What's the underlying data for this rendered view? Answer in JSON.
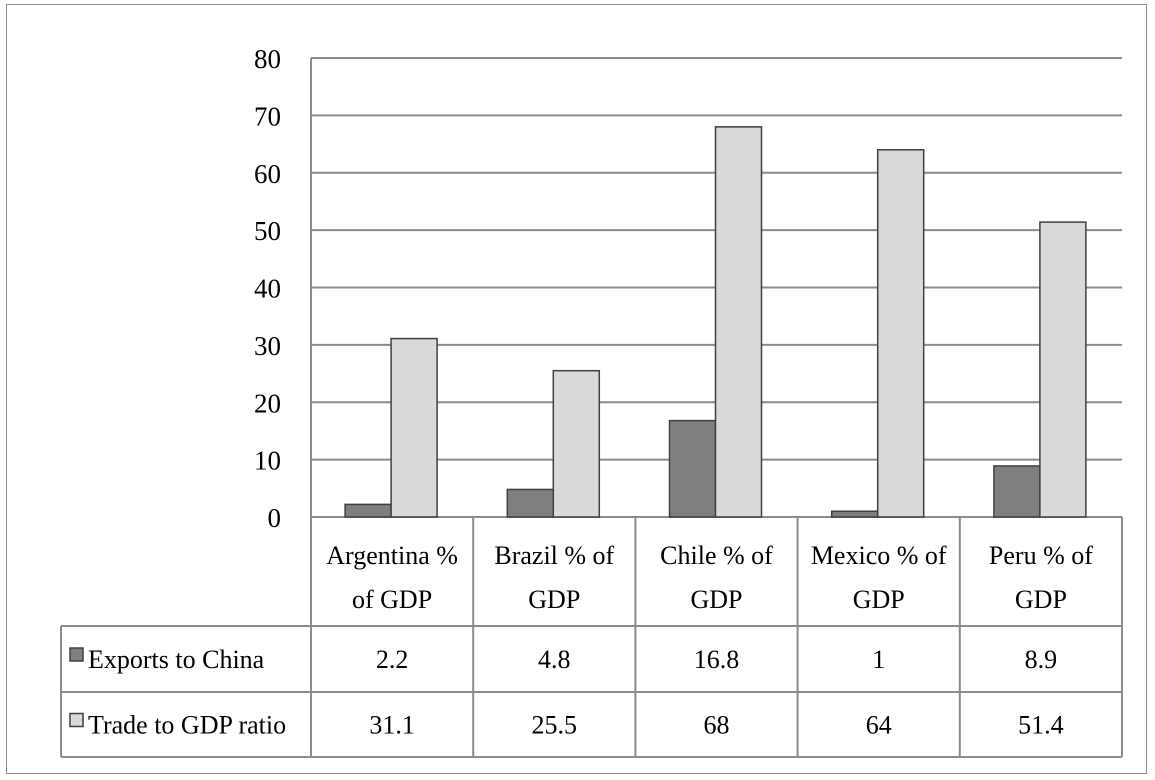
{
  "chart_data": {
    "type": "bar",
    "categories": [
      "Argentina % of GDP",
      "Brazil % of GDP",
      "Chile % of GDP",
      "Mexico % of GDP",
      "Peru % of GDP"
    ],
    "category_lines": [
      [
        "Argentina %",
        "of GDP"
      ],
      [
        "Brazil % of",
        "GDP"
      ],
      [
        "Chile % of",
        "GDP"
      ],
      [
        "Mexico % of",
        "GDP"
      ],
      [
        "Peru % of",
        "GDP"
      ]
    ],
    "series": [
      {
        "name": "Exports to China",
        "values": [
          2.2,
          4.8,
          16.8,
          1,
          8.9
        ],
        "labels": [
          "2.2",
          "4.8",
          "16.8",
          "1",
          "8.9"
        ],
        "color": "#7f7f7f"
      },
      {
        "name": "Trade to GDP ratio",
        "values": [
          31.1,
          25.5,
          68,
          64,
          51.4
        ],
        "labels": [
          "31.1",
          "25.5",
          "68",
          "64",
          "51.4"
        ],
        "color": "#d9d9d9"
      }
    ],
    "yticks": [
      "0",
      "10",
      "20",
      "30",
      "40",
      "50",
      "60",
      "70",
      "80"
    ],
    "ylim": [
      0,
      80
    ],
    "grid": true,
    "data_table": true,
    "title": "",
    "xlabel": "",
    "ylabel": ""
  }
}
